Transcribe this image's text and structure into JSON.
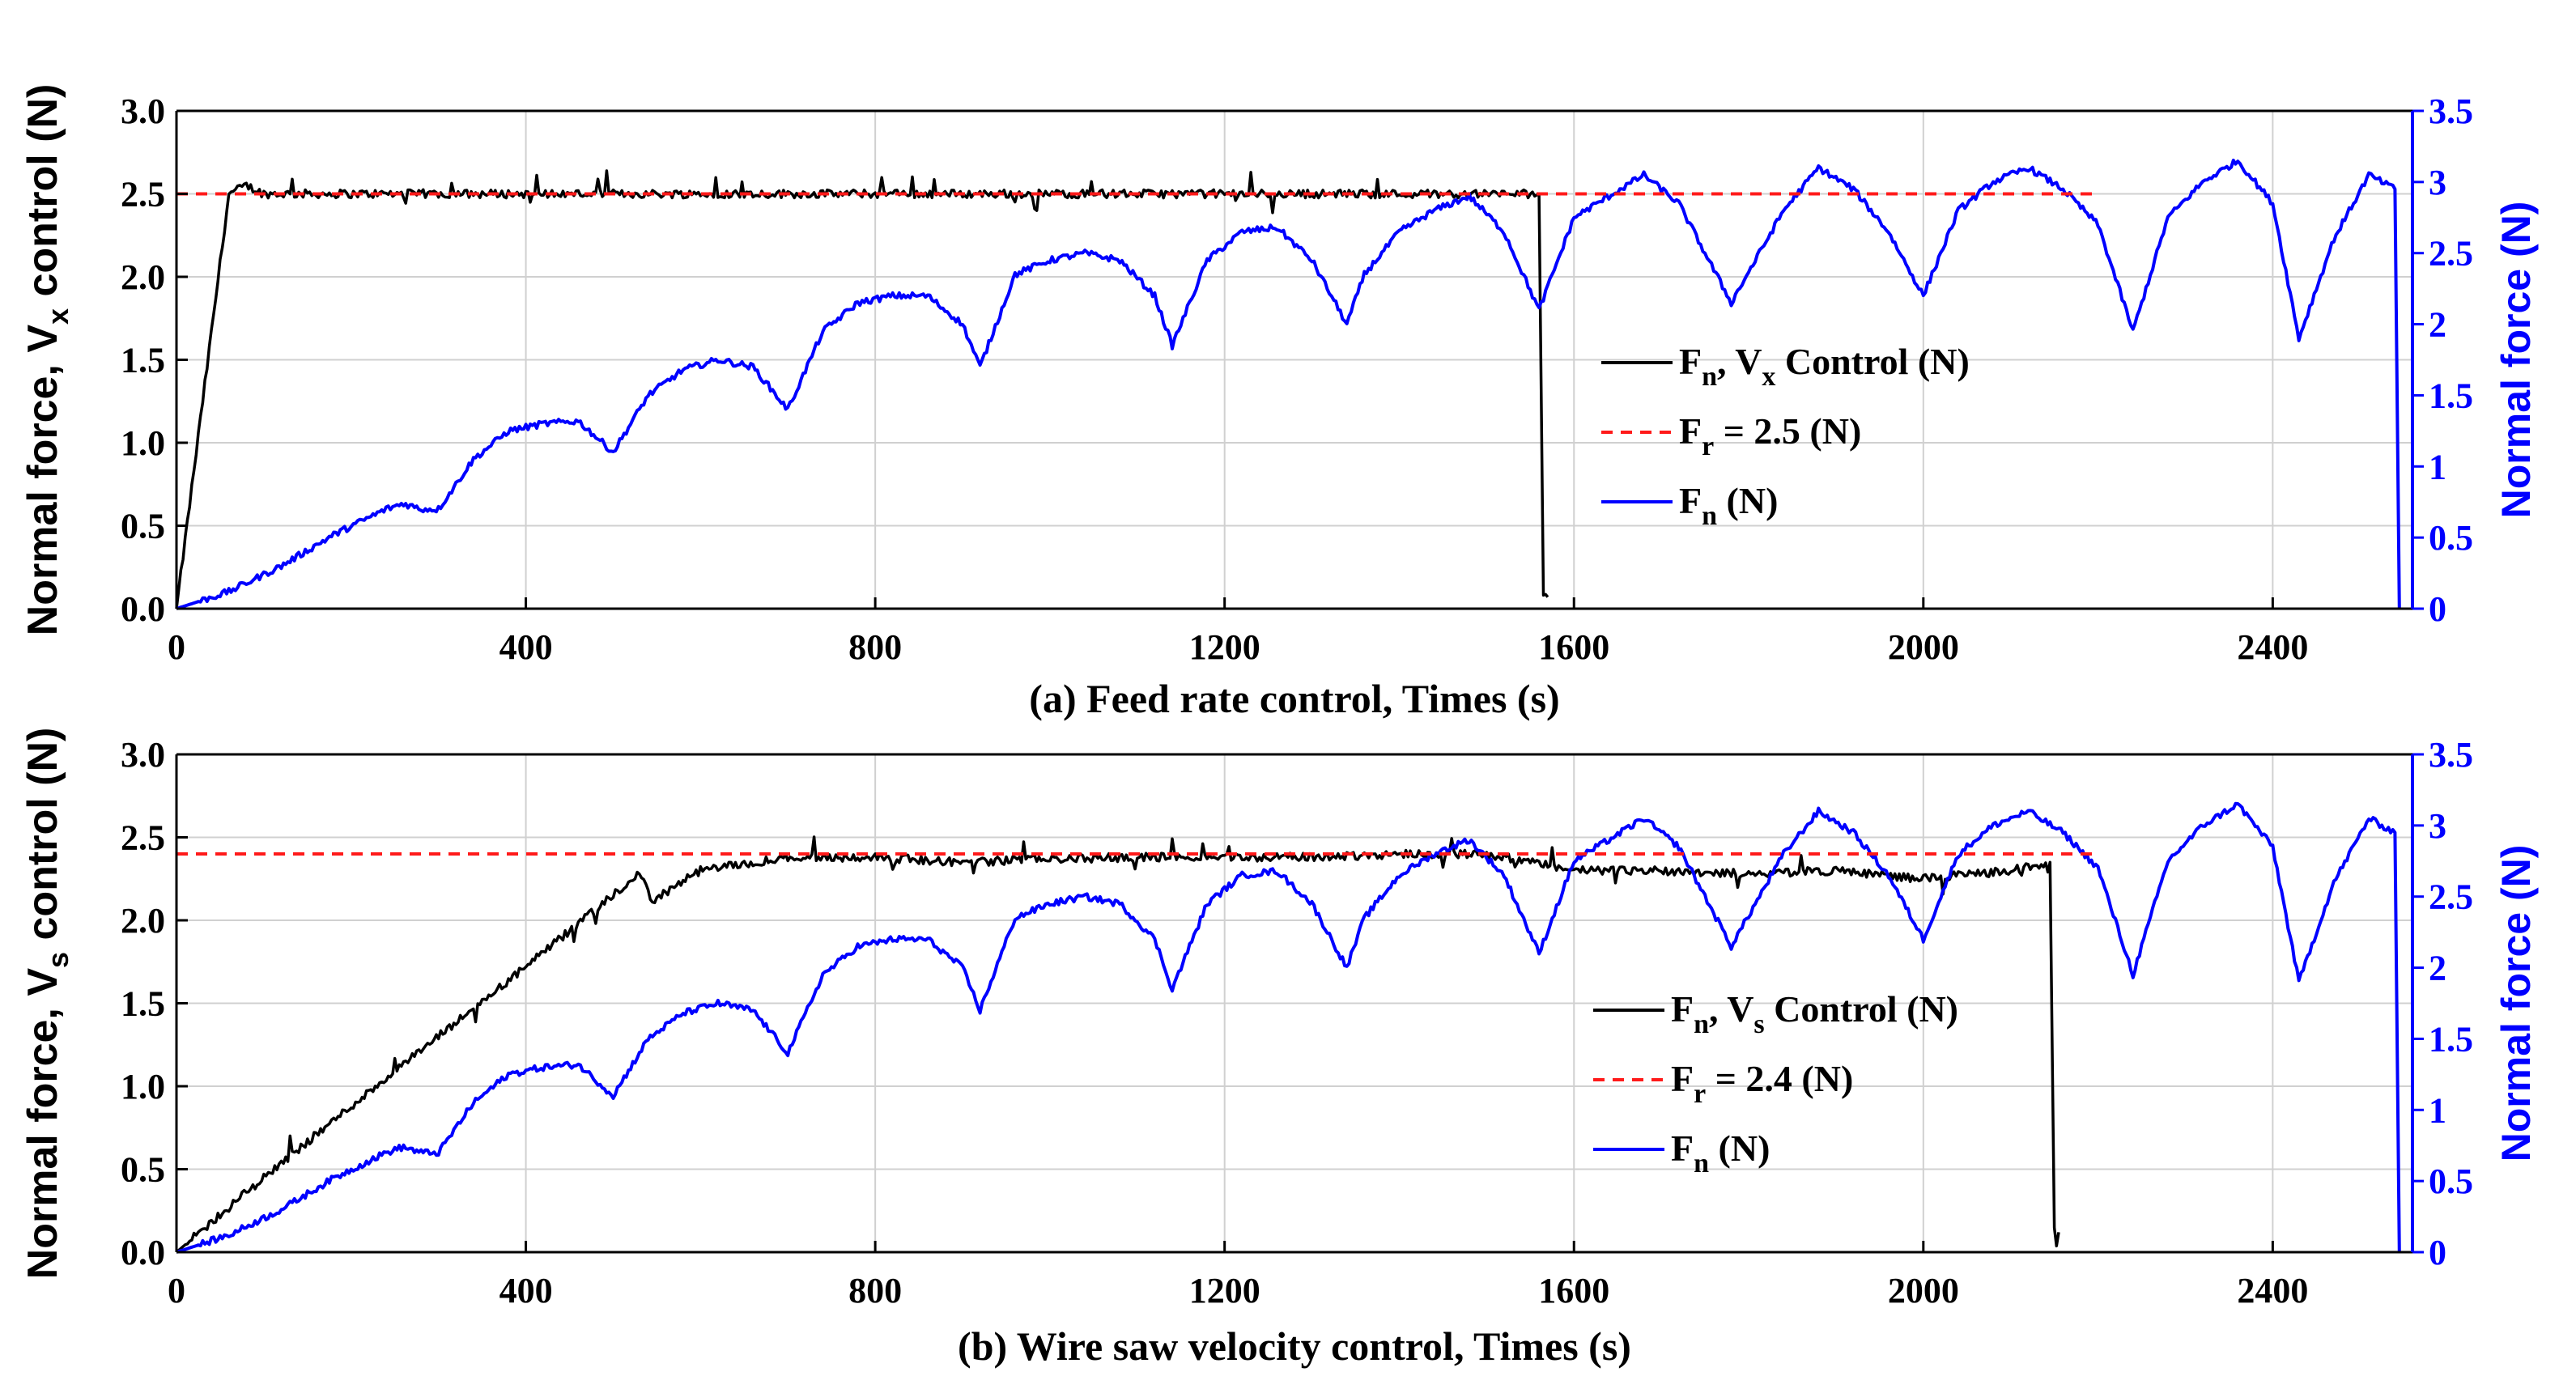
{
  "colors": {
    "control": "#000000",
    "reference": "#ff1a1a",
    "fn": "#0000ff",
    "grid": "#d0d0d0",
    "axis_left": "#000000",
    "axis_right": "#0000ff"
  },
  "chart_data": [
    {
      "type": "line",
      "panel": "a",
      "xlabel": "(a) Feed rate control, Times (s)",
      "ylabel_left_pre": "Normal force, V",
      "ylabel_left_sub": "x",
      "ylabel_left_post": " control (N)",
      "ylabel_right": "Normal force (N)",
      "xlim": [
        0,
        2560
      ],
      "ylim_left": [
        0,
        3.0
      ],
      "ylim_right": [
        0,
        3.5
      ],
      "xticks": [
        "0",
        "400",
        "800",
        "1200",
        "1600",
        "2000",
        "2400"
      ],
      "yticks_left": [
        "0.0",
        "0.5",
        "1.0",
        "1.5",
        "2.0",
        "2.5",
        "3.0"
      ],
      "yticks_right": [
        "0",
        "0.5",
        "1",
        "1.5",
        "2",
        "2.5",
        "3",
        "3.5"
      ],
      "legend": {
        "control": {
          "main": "F",
          "sub1": "n",
          "mid": ", V",
          "sub2": "x",
          "post": " Control (N)"
        },
        "reference": {
          "main": "F",
          "sub1": "r",
          "post": " = 2.5 (N)"
        },
        "fn": {
          "main": "F",
          "sub1": "n",
          "post": " (N)"
        }
      },
      "reference_value": 2.5,
      "reference_x_end": 2200,
      "series": [
        {
          "name": "Fn, Vx Control (N)",
          "axis": "left",
          "style": "control",
          "x": [
            0,
            60,
            80,
            100,
            1560,
            1565,
            1570
          ],
          "y": [
            0,
            2.5,
            2.55,
            2.5,
            2.5,
            0.1,
            0.07
          ]
        },
        {
          "name": "Fn (N)",
          "axis": "right",
          "style": "fn",
          "x": [
            0,
            60,
            120,
            180,
            240,
            260,
            280,
            300,
            340,
            380,
            420,
            460,
            500,
            540,
            580,
            620,
            660,
            700,
            740,
            780,
            820,
            860,
            900,
            920,
            960,
            1000,
            1040,
            1080,
            1120,
            1140,
            1180,
            1220,
            1260,
            1300,
            1340,
            1360,
            1400,
            1440,
            1480,
            1520,
            1560,
            1600,
            1640,
            1680,
            1720,
            1780,
            1840,
            1880,
            1920,
            1960,
            2000,
            2040,
            2080,
            2120,
            2160,
            2200,
            2240,
            2280,
            2320,
            2360,
            2400,
            2430,
            2470,
            2510,
            2540,
            2545
          ],
          "y": [
            0,
            0.12,
            0.3,
            0.52,
            0.7,
            0.74,
            0.7,
            0.7,
            1.05,
            1.25,
            1.3,
            1.32,
            1.1,
            1.5,
            1.68,
            1.75,
            1.7,
            1.4,
            1.95,
            2.15,
            2.2,
            2.2,
            2.0,
            1.7,
            2.35,
            2.45,
            2.5,
            2.45,
            2.2,
            1.85,
            2.45,
            2.65,
            2.68,
            2.45,
            2.0,
            2.35,
            2.65,
            2.8,
            2.9,
            2.65,
            2.1,
            2.75,
            2.9,
            3.05,
            2.85,
            2.15,
            2.8,
            3.1,
            2.95,
            2.65,
            2.2,
            2.8,
            3.0,
            3.1,
            2.95,
            2.7,
            1.95,
            2.75,
            3.0,
            3.15,
            2.85,
            1.9,
            2.6,
            3.05,
            2.95,
            0
          ]
        }
      ]
    },
    {
      "type": "line",
      "panel": "b",
      "xlabel": "(b) Wire saw velocity control, Times (s)",
      "ylabel_left_pre": "Normal force, V",
      "ylabel_left_sub": "s",
      "ylabel_left_post": " control (N)",
      "ylabel_right": "Normal force (N)",
      "xlim": [
        0,
        2560
      ],
      "ylim_left": [
        0,
        3.0
      ],
      "ylim_right": [
        0,
        3.5
      ],
      "xticks": [
        "0",
        "400",
        "800",
        "1200",
        "1600",
        "2000",
        "2400"
      ],
      "yticks_left": [
        "0.0",
        "0.5",
        "1.0",
        "1.5",
        "2.0",
        "2.5",
        "3.0"
      ],
      "yticks_right": [
        "0",
        "0.5",
        "1",
        "1.5",
        "2",
        "2.5",
        "3",
        "3.5"
      ],
      "legend": {
        "control": {
          "main": "F",
          "sub1": "n",
          "mid": ", V",
          "sub2": "s",
          "post": " Control (N)"
        },
        "reference": {
          "main": "F",
          "sub1": "r",
          "post": " = 2.4 (N)"
        },
        "fn": {
          "main": "F",
          "sub1": "n",
          "post": " (N)"
        }
      },
      "reference_value": 2.4,
      "reference_x_end": 2200,
      "series": [
        {
          "name": "Fn, Vs Control (N)",
          "axis": "left",
          "style": "control",
          "x": [
            0,
            100,
            200,
            300,
            400,
            500,
            530,
            545,
            600,
            700,
            800,
            900,
            1000,
            1100,
            1200,
            1300,
            1400,
            1500,
            1550,
            1600,
            1700,
            1800,
            1900,
            2000,
            2100,
            2145,
            2150,
            2155
          ],
          "y": [
            0,
            0.45,
            0.88,
            1.3,
            1.72,
            2.15,
            2.28,
            2.12,
            2.3,
            2.38,
            2.38,
            2.35,
            2.37,
            2.38,
            2.38,
            2.38,
            2.4,
            2.4,
            2.35,
            2.3,
            2.3,
            2.28,
            2.3,
            2.25,
            2.3,
            2.35,
            0.15,
            0.12
          ]
        },
        {
          "name": "Fn (N)",
          "axis": "right",
          "style": "fn",
          "x": [
            0,
            60,
            120,
            180,
            240,
            260,
            280,
            300,
            340,
            380,
            420,
            460,
            500,
            540,
            580,
            620,
            660,
            700,
            740,
            780,
            820,
            860,
            900,
            920,
            960,
            1000,
            1040,
            1080,
            1120,
            1140,
            1180,
            1220,
            1260,
            1300,
            1340,
            1360,
            1400,
            1440,
            1480,
            1520,
            1560,
            1600,
            1640,
            1680,
            1720,
            1780,
            1840,
            1880,
            1920,
            1960,
            2000,
            2040,
            2080,
            2120,
            2160,
            2200,
            2240,
            2280,
            2320,
            2360,
            2400,
            2430,
            2470,
            2510,
            2540,
            2545
          ],
          "y": [
            0,
            0.12,
            0.3,
            0.52,
            0.7,
            0.74,
            0.7,
            0.7,
            1.05,
            1.25,
            1.3,
            1.32,
            1.1,
            1.5,
            1.68,
            1.75,
            1.7,
            1.4,
            1.95,
            2.15,
            2.2,
            2.2,
            2.0,
            1.7,
            2.35,
            2.45,
            2.5,
            2.45,
            2.2,
            1.85,
            2.45,
            2.65,
            2.68,
            2.45,
            2.0,
            2.35,
            2.65,
            2.8,
            2.9,
            2.65,
            2.1,
            2.75,
            2.9,
            3.05,
            2.85,
            2.15,
            2.8,
            3.1,
            2.95,
            2.65,
            2.2,
            2.8,
            3.0,
            3.1,
            2.95,
            2.7,
            1.95,
            2.75,
            3.0,
            3.15,
            2.85,
            1.9,
            2.6,
            3.05,
            2.95,
            0
          ]
        }
      ]
    }
  ]
}
